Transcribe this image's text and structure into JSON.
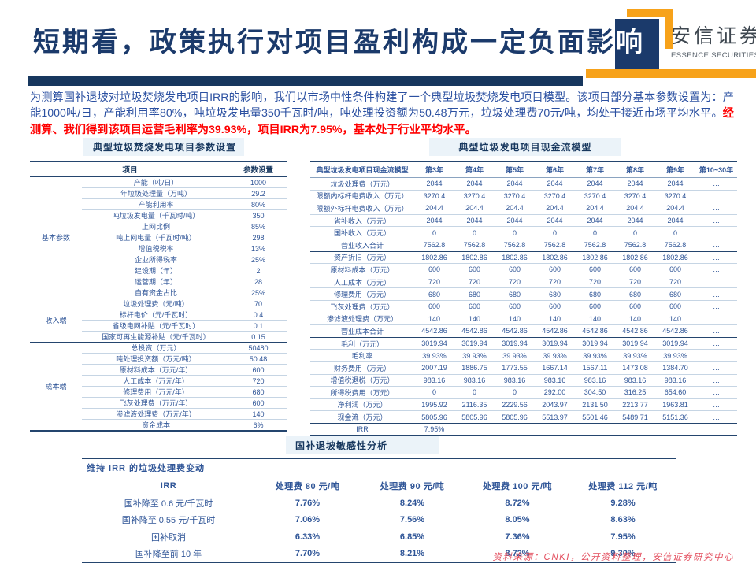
{
  "header": {
    "title_main": "短期看，政策执行对项目盈利构成一定负面影",
    "title_last_char": "响",
    "brand_cn": "安信证券",
    "brand_en": "ESSENCE SECURITIES"
  },
  "intro": {
    "text_blue": "为测算国补退坡对垃圾焚烧发电项目IRR的影响，我们以市场中性条件构建了一个典型垃圾焚烧发电项目模型。该项目部分基本参数设置为：产能1000吨/日，产能利用率80%，吨垃圾发电量350千瓦时/吨，吨处理投资额为50.48万元，垃圾处理费70元/吨，均处于接近市场平均水平。",
    "text_red": "经测算、我们得到该项目运营毛利率为39.93%，项目IRR为7.95%，基本处于行业平均水平。"
  },
  "left_table": {
    "title": "典型垃圾焚烧发电项目参数设置",
    "col_headers": [
      "项目",
      "参数设置"
    ],
    "groups": [
      {
        "name": "基本参数",
        "rows": [
          [
            "产能（吨/日）",
            "1000"
          ],
          [
            "年垃圾处理量（万吨）",
            "29.2"
          ],
          [
            "产能利用率",
            "80%"
          ],
          [
            "吨垃圾发电量（千瓦时/吨）",
            "350"
          ],
          [
            "上网比例",
            "85%"
          ],
          [
            "吨上网电量（千瓦时/吨）",
            "298"
          ],
          [
            "增值税税率",
            "13%"
          ],
          [
            "企业所得税率",
            "25%"
          ],
          [
            "建设期（年）",
            "2"
          ],
          [
            "运营期（年）",
            "28"
          ],
          [
            "自有资金占比",
            "25%"
          ]
        ]
      },
      {
        "name": "收入端",
        "rows": [
          [
            "垃圾处理费（元/吨）",
            "70"
          ],
          [
            "标杆电价（元/千瓦时）",
            "0.4"
          ],
          [
            "省级电网补贴（元/千瓦时）",
            "0.1"
          ],
          [
            "国家可再生能源补贴（元/千瓦时）",
            "0.15"
          ]
        ]
      },
      {
        "name": "成本端",
        "rows": [
          [
            "总投资（万元）",
            "50480"
          ],
          [
            "吨处理投资额（万元/吨）",
            "50.48"
          ],
          [
            "原材料成本（万元/年）",
            "600"
          ],
          [
            "人工成本（万元/年）",
            "720"
          ],
          [
            "修理费用（万元/年）",
            "680"
          ],
          [
            "飞灰处理费（万元/年）",
            "600"
          ],
          [
            "渗滤液处理费（万元/年）",
            "140"
          ],
          [
            "资金成本",
            "6%"
          ]
        ]
      }
    ]
  },
  "right_table": {
    "title": "典型垃圾发电项目现金流模型",
    "corner_label": "典型垃圾发电项目现金流模型",
    "year_headers": [
      "第3年",
      "第4年",
      "第5年",
      "第6年",
      "第7年",
      "第8年",
      "第9年",
      "第10~30年"
    ],
    "rows": [
      {
        "label": "垃圾处理费（万元）",
        "values": [
          "2044",
          "2044",
          "2044",
          "2044",
          "2044",
          "2044",
          "2044",
          "…"
        ],
        "sep": false
      },
      {
        "label": "限额内标杆电费收入（万元）",
        "values": [
          "3270.4",
          "3270.4",
          "3270.4",
          "3270.4",
          "3270.4",
          "3270.4",
          "3270.4",
          "…"
        ],
        "sep": false
      },
      {
        "label": "限额外标杆电费收入（万元）",
        "values": [
          "204.4",
          "204.4",
          "204.4",
          "204.4",
          "204.4",
          "204.4",
          "204.4",
          "…"
        ],
        "sep": false
      },
      {
        "label": "省补收入（万元）",
        "values": [
          "2044",
          "2044",
          "2044",
          "2044",
          "2044",
          "2044",
          "2044",
          "…"
        ],
        "sep": false
      },
      {
        "label": "国补收入（万元）",
        "values": [
          "0",
          "0",
          "0",
          "0",
          "0",
          "0",
          "0",
          "…"
        ],
        "sep": false
      },
      {
        "label": "营业收入合计",
        "values": [
          "7562.8",
          "7562.8",
          "7562.8",
          "7562.8",
          "7562.8",
          "7562.8",
          "7562.8",
          "…"
        ],
        "sep": true
      },
      {
        "label": "资产折旧（万元）",
        "values": [
          "1802.86",
          "1802.86",
          "1802.86",
          "1802.86",
          "1802.86",
          "1802.86",
          "1802.86",
          "…"
        ],
        "sep": false
      },
      {
        "label": "原材料成本（万元）",
        "values": [
          "600",
          "600",
          "600",
          "600",
          "600",
          "600",
          "600",
          "…"
        ],
        "sep": false
      },
      {
        "label": "人工成本（万元）",
        "values": [
          "720",
          "720",
          "720",
          "720",
          "720",
          "720",
          "720",
          "…"
        ],
        "sep": false
      },
      {
        "label": "修理费用（万元）",
        "values": [
          "680",
          "680",
          "680",
          "680",
          "680",
          "680",
          "680",
          "…"
        ],
        "sep": false
      },
      {
        "label": "飞灰处理费（万元）",
        "values": [
          "600",
          "600",
          "600",
          "600",
          "600",
          "600",
          "600",
          "…"
        ],
        "sep": false
      },
      {
        "label": "渗滤液处理费（万元）",
        "values": [
          "140",
          "140",
          "140",
          "140",
          "140",
          "140",
          "140",
          "…"
        ],
        "sep": false
      },
      {
        "label": "营业成本合计",
        "values": [
          "4542.86",
          "4542.86",
          "4542.86",
          "4542.86",
          "4542.86",
          "4542.86",
          "4542.86",
          "…"
        ],
        "sep": true
      },
      {
        "label": "毛利（万元）",
        "values": [
          "3019.94",
          "3019.94",
          "3019.94",
          "3019.94",
          "3019.94",
          "3019.94",
          "3019.94",
          "…"
        ],
        "sep": false
      },
      {
        "label": "毛利率",
        "values": [
          "39.93%",
          "39.93%",
          "39.93%",
          "39.93%",
          "39.93%",
          "39.93%",
          "39.93%",
          "…"
        ],
        "sep": false
      },
      {
        "label": "财务费用（万元）",
        "values": [
          "2007.19",
          "1886.75",
          "1773.55",
          "1667.14",
          "1567.11",
          "1473.08",
          "1384.70",
          "…"
        ],
        "sep": false
      },
      {
        "label": "增值税退税（万元）",
        "values": [
          "983.16",
          "983.16",
          "983.16",
          "983.16",
          "983.16",
          "983.16",
          "983.16",
          "…"
        ],
        "sep": false
      },
      {
        "label": "所得税费用（万元）",
        "values": [
          "0",
          "0",
          "0",
          "292.00",
          "304.50",
          "316.25",
          "654.60",
          "…"
        ],
        "sep": false
      },
      {
        "label": "净利润（万元）",
        "values": [
          "1995.92",
          "2116.35",
          "2229.56",
          "2043.97",
          "2131.50",
          "2213.77",
          "1963.81",
          "…"
        ],
        "sep": false
      },
      {
        "label": "现金流（万元）",
        "values": [
          "5805.96",
          "5805.96",
          "5805.96",
          "5513.97",
          "5501.46",
          "5489.71",
          "5151.36",
          "…"
        ],
        "sep": true
      },
      {
        "label": "IRR",
        "values": [
          "7.95%",
          "",
          "",
          "",
          "",
          "",
          "",
          ""
        ],
        "sep": false
      }
    ]
  },
  "sensitivity": {
    "section_title": "国补退坡敏感性分析",
    "span_header": "维持 IRR 的垃圾处理费变动",
    "col_headers": [
      "IRR",
      "处理费 80 元/吨",
      "处理费 90 元/吨",
      "处理费 100 元/吨",
      "处理费 112 元/吨"
    ],
    "rows": [
      [
        "国补降至 0.6 元/千瓦时",
        "7.76%",
        "8.24%",
        "8.72%",
        "9.28%"
      ],
      [
        "国补降至 0.55 元/千瓦时",
        "7.06%",
        "7.56%",
        "8.05%",
        "8.63%"
      ],
      [
        "国补取消",
        "6.33%",
        "6.85%",
        "7.36%",
        "7.95%"
      ],
      [
        "国补降至前 10 年",
        "7.70%",
        "8.21%",
        "8.72%",
        "9.30%"
      ]
    ]
  },
  "footer": {
    "source": "资料来源：CNKI，公开资料整理，安信证券研究中心"
  },
  "colors": {
    "navy": "#17375e",
    "table_blue": "#2f5597",
    "orange": "#f7a21a",
    "highlight_red": "#ff0000",
    "footer_red": "#e34e5e",
    "title_box_bg": "#ebf3f9"
  }
}
